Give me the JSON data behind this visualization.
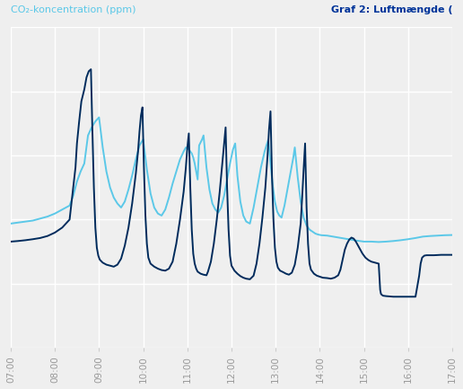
{
  "title_left": "CO₂-koncentration (ppm)",
  "title_right": "Graf 2: Luftmængde (",
  "background_color": "#efefef",
  "grid_color": "#ffffff",
  "line1_color": "#5bc8e8",
  "line2_color": "#002b5c",
  "x_ticks": [
    "07:00",
    "08:00",
    "09:00",
    "10:00",
    "11:00",
    "12:00",
    "13:00",
    "14:00",
    "15:00",
    "16:00",
    "17:00"
  ],
  "ylim": [
    0,
    1600
  ],
  "xlim": [
    0,
    600
  ],
  "light_blue": [
    [
      0,
      620
    ],
    [
      10,
      625
    ],
    [
      20,
      630
    ],
    [
      30,
      635
    ],
    [
      40,
      645
    ],
    [
      50,
      655
    ],
    [
      60,
      670
    ],
    [
      70,
      690
    ],
    [
      80,
      710
    ],
    [
      85,
      760
    ],
    [
      90,
      830
    ],
    [
      95,
      880
    ],
    [
      100,
      920
    ],
    [
      105,
      1060
    ],
    [
      110,
      1100
    ],
    [
      115,
      1130
    ],
    [
      120,
      1150
    ],
    [
      125,
      1000
    ],
    [
      130,
      880
    ],
    [
      135,
      800
    ],
    [
      140,
      750
    ],
    [
      145,
      720
    ],
    [
      150,
      700
    ],
    [
      155,
      730
    ],
    [
      160,
      790
    ],
    [
      165,
      860
    ],
    [
      170,
      940
    ],
    [
      175,
      1010
    ],
    [
      180,
      1040
    ],
    [
      185,
      890
    ],
    [
      190,
      770
    ],
    [
      195,
      700
    ],
    [
      200,
      670
    ],
    [
      205,
      660
    ],
    [
      210,
      690
    ],
    [
      215,
      750
    ],
    [
      220,
      820
    ],
    [
      225,
      880
    ],
    [
      230,
      940
    ],
    [
      235,
      980
    ],
    [
      238,
      1000
    ],
    [
      242,
      990
    ],
    [
      246,
      970
    ],
    [
      248,
      950
    ],
    [
      250,
      920
    ],
    [
      252,
      880
    ],
    [
      254,
      840
    ],
    [
      256,
      1010
    ],
    [
      260,
      1040
    ],
    [
      262,
      1060
    ],
    [
      266,
      900
    ],
    [
      270,
      790
    ],
    [
      274,
      720
    ],
    [
      278,
      690
    ],
    [
      282,
      675
    ],
    [
      286,
      700
    ],
    [
      290,
      760
    ],
    [
      294,
      840
    ],
    [
      298,
      920
    ],
    [
      302,
      990
    ],
    [
      305,
      1020
    ],
    [
      308,
      860
    ],
    [
      312,
      730
    ],
    [
      316,
      660
    ],
    [
      320,
      630
    ],
    [
      325,
      620
    ],
    [
      330,
      700
    ],
    [
      335,
      800
    ],
    [
      340,
      900
    ],
    [
      345,
      980
    ],
    [
      350,
      1040
    ],
    [
      353,
      920
    ],
    [
      356,
      810
    ],
    [
      359,
      730
    ],
    [
      362,
      680
    ],
    [
      365,
      660
    ],
    [
      368,
      650
    ],
    [
      372,
      710
    ],
    [
      376,
      790
    ],
    [
      380,
      870
    ],
    [
      384,
      950
    ],
    [
      386,
      1000
    ],
    [
      390,
      850
    ],
    [
      394,
      730
    ],
    [
      398,
      650
    ],
    [
      402,
      610
    ],
    [
      406,
      590
    ],
    [
      410,
      580
    ],
    [
      414,
      570
    ],
    [
      418,
      565
    ],
    [
      422,
      562
    ],
    [
      430,
      560
    ],
    [
      438,
      555
    ],
    [
      446,
      550
    ],
    [
      454,
      545
    ],
    [
      462,
      540
    ],
    [
      470,
      535
    ],
    [
      480,
      530
    ],
    [
      490,
      530
    ],
    [
      500,
      528
    ],
    [
      510,
      530
    ],
    [
      520,
      533
    ],
    [
      530,
      537
    ],
    [
      540,
      542
    ],
    [
      550,
      548
    ],
    [
      560,
      555
    ],
    [
      570,
      558
    ],
    [
      580,
      560
    ],
    [
      590,
      562
    ],
    [
      600,
      563
    ]
  ],
  "dark_blue": [
    [
      0,
      530
    ],
    [
      10,
      533
    ],
    [
      20,
      537
    ],
    [
      30,
      542
    ],
    [
      40,
      548
    ],
    [
      50,
      558
    ],
    [
      60,
      575
    ],
    [
      70,
      600
    ],
    [
      80,
      640
    ],
    [
      85,
      800
    ],
    [
      88,
      900
    ],
    [
      90,
      1020
    ],
    [
      93,
      1130
    ],
    [
      96,
      1230
    ],
    [
      100,
      1290
    ],
    [
      103,
      1350
    ],
    [
      106,
      1380
    ],
    [
      109,
      1390
    ],
    [
      111,
      1080
    ],
    [
      113,
      800
    ],
    [
      115,
      600
    ],
    [
      117,
      500
    ],
    [
      119,
      460
    ],
    [
      121,
      440
    ],
    [
      125,
      425
    ],
    [
      130,
      415
    ],
    [
      135,
      410
    ],
    [
      140,
      405
    ],
    [
      145,
      415
    ],
    [
      150,
      445
    ],
    [
      155,
      510
    ],
    [
      160,
      600
    ],
    [
      165,
      720
    ],
    [
      170,
      870
    ],
    [
      173,
      980
    ],
    [
      175,
      1080
    ],
    [
      177,
      1160
    ],
    [
      179,
      1200
    ],
    [
      181,
      900
    ],
    [
      183,
      660
    ],
    [
      185,
      520
    ],
    [
      187,
      450
    ],
    [
      190,
      420
    ],
    [
      195,
      405
    ],
    [
      200,
      395
    ],
    [
      205,
      388
    ],
    [
      210,
      385
    ],
    [
      215,
      395
    ],
    [
      220,
      430
    ],
    [
      225,
      520
    ],
    [
      230,
      640
    ],
    [
      235,
      780
    ],
    [
      238,
      900
    ],
    [
      240,
      1000
    ],
    [
      242,
      1070
    ],
    [
      244,
      800
    ],
    [
      246,
      590
    ],
    [
      248,
      470
    ],
    [
      250,
      420
    ],
    [
      252,
      395
    ],
    [
      254,
      380
    ],
    [
      258,
      370
    ],
    [
      262,
      365
    ],
    [
      266,
      362
    ],
    [
      268,
      380
    ],
    [
      272,
      430
    ],
    [
      276,
      520
    ],
    [
      280,
      640
    ],
    [
      284,
      780
    ],
    [
      287,
      900
    ],
    [
      290,
      1020
    ],
    [
      292,
      1100
    ],
    [
      294,
      800
    ],
    [
      296,
      590
    ],
    [
      298,
      460
    ],
    [
      300,
      410
    ],
    [
      304,
      385
    ],
    [
      308,
      370
    ],
    [
      312,
      358
    ],
    [
      316,
      350
    ],
    [
      320,
      345
    ],
    [
      325,
      342
    ],
    [
      330,
      360
    ],
    [
      334,
      420
    ],
    [
      338,
      520
    ],
    [
      342,
      650
    ],
    [
      346,
      800
    ],
    [
      349,
      960
    ],
    [
      351,
      1090
    ],
    [
      353,
      1180
    ],
    [
      355,
      860
    ],
    [
      357,
      640
    ],
    [
      359,
      500
    ],
    [
      361,
      430
    ],
    [
      363,
      400
    ],
    [
      366,
      385
    ],
    [
      370,
      378
    ],
    [
      374,
      370
    ],
    [
      378,
      365
    ],
    [
      382,
      375
    ],
    [
      386,
      415
    ],
    [
      390,
      500
    ],
    [
      394,
      620
    ],
    [
      396,
      750
    ],
    [
      398,
      890
    ],
    [
      400,
      1020
    ],
    [
      402,
      700
    ],
    [
      404,
      520
    ],
    [
      406,
      420
    ],
    [
      408,
      390
    ],
    [
      412,
      370
    ],
    [
      416,
      360
    ],
    [
      420,
      355
    ],
    [
      424,
      350
    ],
    [
      430,
      348
    ],
    [
      435,
      345
    ],
    [
      440,
      350
    ],
    [
      445,
      362
    ],
    [
      448,
      390
    ],
    [
      451,
      440
    ],
    [
      454,
      490
    ],
    [
      457,
      520
    ],
    [
      460,
      540
    ],
    [
      463,
      550
    ],
    [
      466,
      545
    ],
    [
      469,
      530
    ],
    [
      472,
      510
    ],
    [
      475,
      490
    ],
    [
      478,
      470
    ],
    [
      482,
      450
    ],
    [
      486,
      438
    ],
    [
      490,
      430
    ],
    [
      495,
      425
    ],
    [
      500,
      420
    ],
    [
      502,
      290
    ],
    [
      503,
      270
    ],
    [
      504,
      265
    ],
    [
      506,
      260
    ],
    [
      510,
      258
    ],
    [
      520,
      255
    ],
    [
      530,
      255
    ],
    [
      540,
      255
    ],
    [
      550,
      255
    ],
    [
      555,
      360
    ],
    [
      557,
      420
    ],
    [
      559,
      450
    ],
    [
      562,
      460
    ],
    [
      565,
      462
    ],
    [
      568,
      462
    ],
    [
      571,
      462
    ],
    [
      575,
      462
    ],
    [
      580,
      463
    ],
    [
      585,
      464
    ],
    [
      590,
      464
    ],
    [
      595,
      464
    ],
    [
      600,
      464
    ]
  ]
}
